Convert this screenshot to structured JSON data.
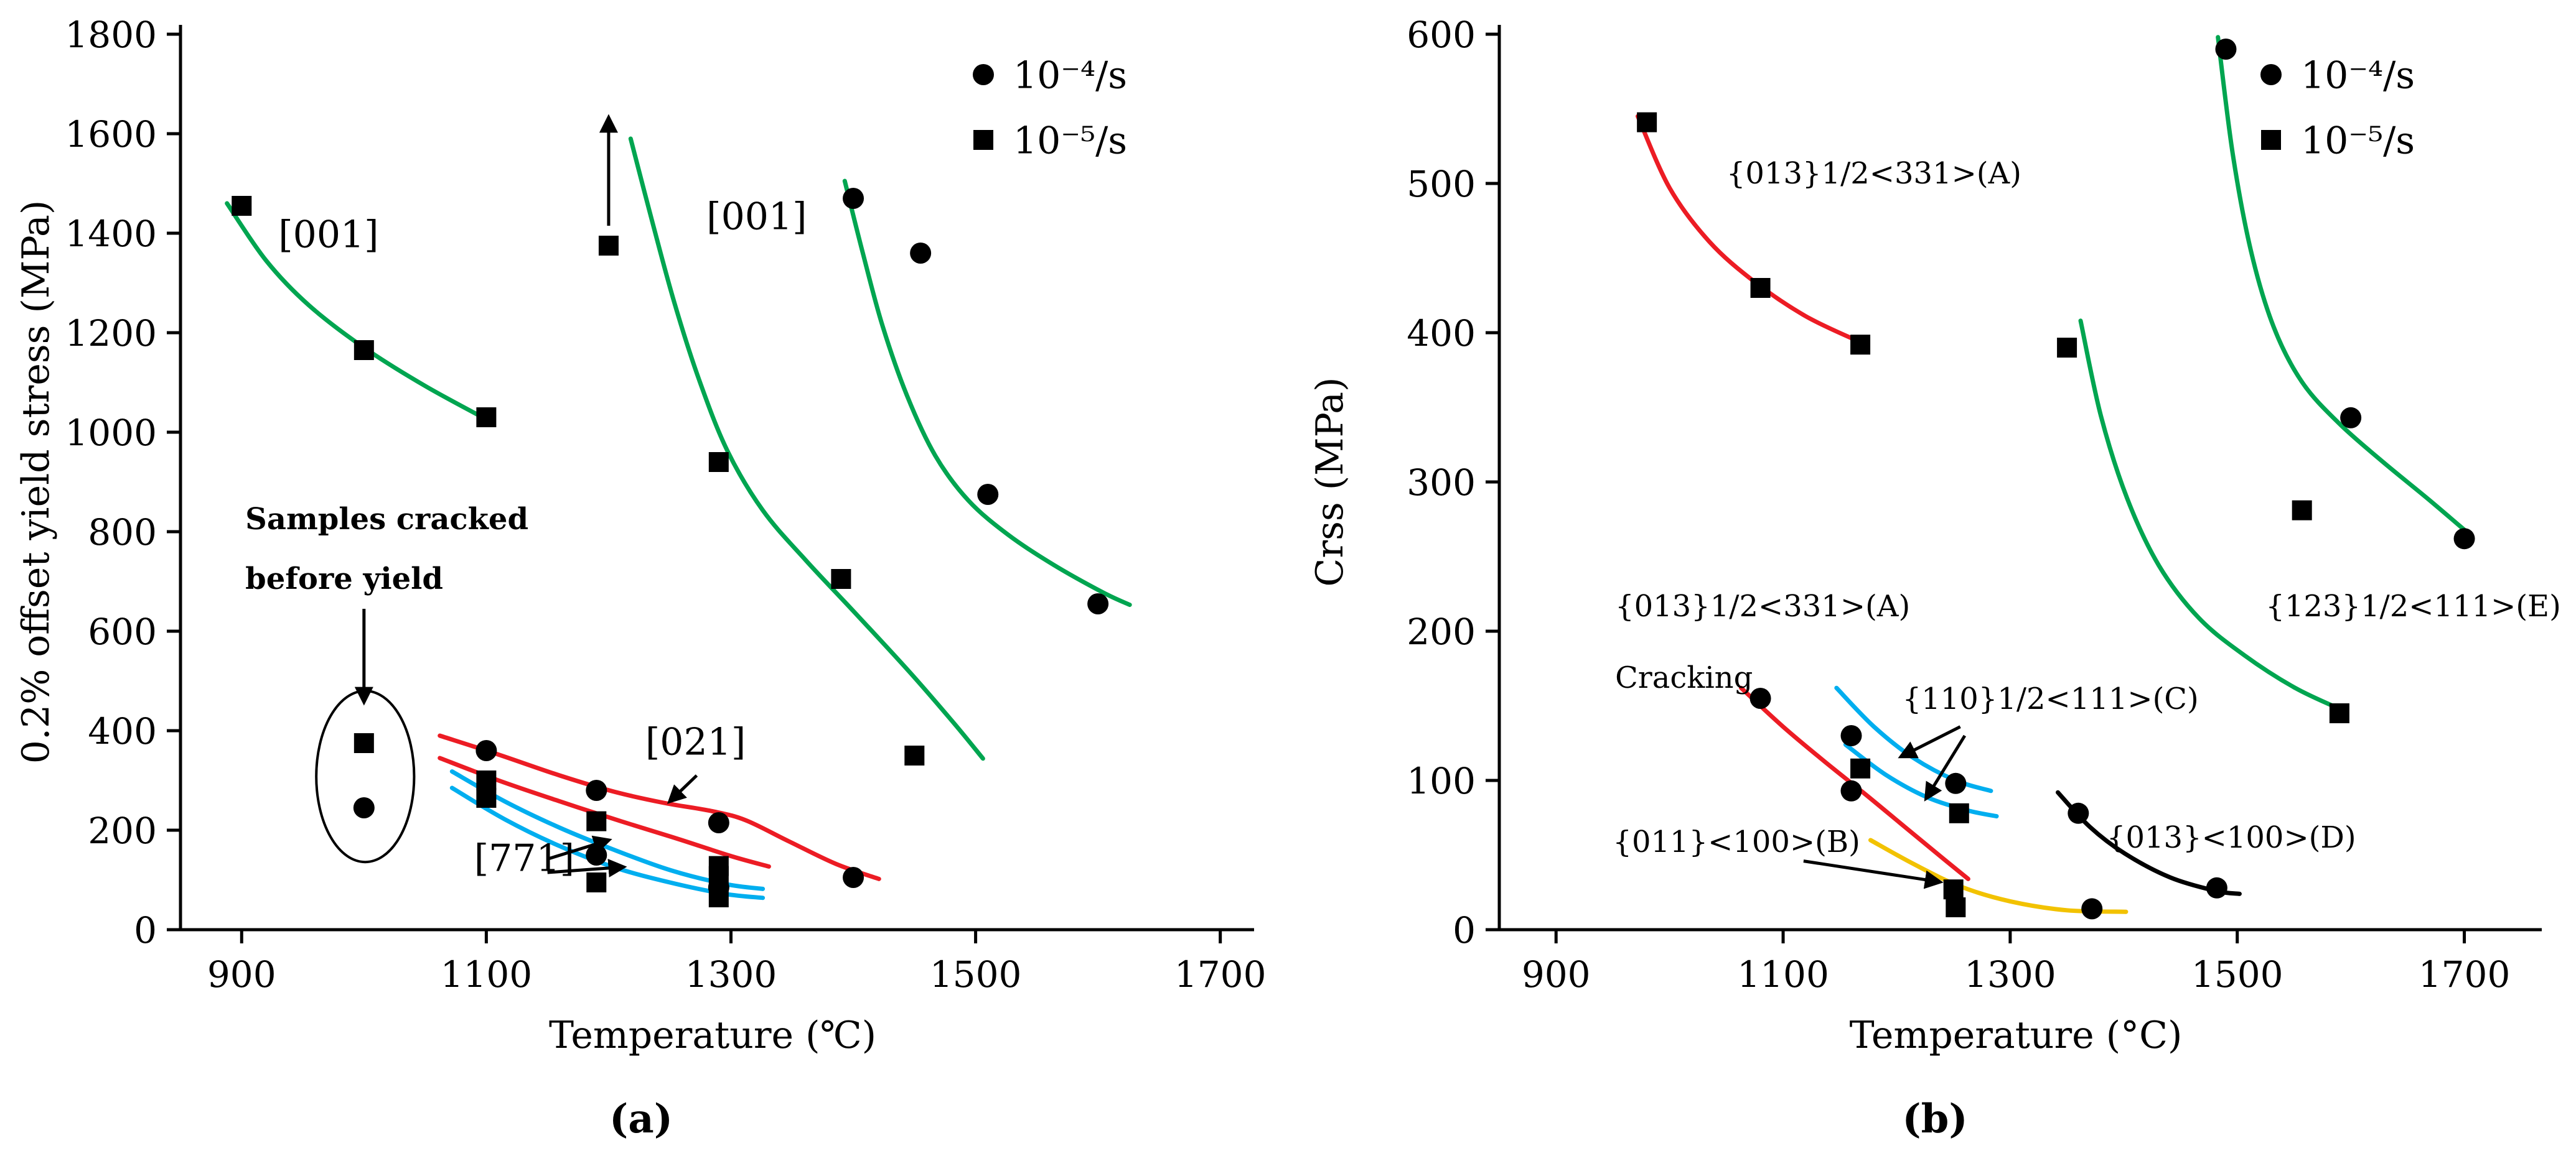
{
  "page": {
    "background": "#ffffff"
  },
  "chart_data": [
    {
      "id": "a",
      "type": "line",
      "caption": "(a)",
      "title": "",
      "xlabel": "Temperature (℃)",
      "ylabel": "0.2% offset yield stress (MPa)",
      "xlim": [
        850,
        1720
      ],
      "ylim": [
        0,
        1800
      ],
      "xticks": [
        900,
        1100,
        1300,
        1500,
        1700
      ],
      "yticks": [
        0,
        200,
        400,
        600,
        800,
        1000,
        1200,
        1400,
        1600,
        1800
      ],
      "grid": false,
      "legend": {
        "position": "top-right",
        "items": [
          {
            "marker": "circle",
            "label": "10⁻⁴/s"
          },
          {
            "marker": "square",
            "label": "10⁻⁵/s"
          }
        ]
      },
      "series": [
        {
          "key": "green-001-sq-low",
          "label": "[001] 10⁻⁵/s",
          "color": "#00A550",
          "marker": "square",
          "curve": [
            [
              888,
              1460
            ],
            [
              920,
              1345
            ],
            [
              955,
              1255
            ],
            [
              1000,
              1170
            ],
            [
              1050,
              1093
            ],
            [
              1103,
              1022
            ]
          ],
          "points": [
            [
              900,
              1455
            ],
            [
              1000,
              1165
            ],
            [
              1100,
              1030
            ]
          ]
        },
        {
          "key": "green-001-sq-high",
          "label": "[001] 10⁻⁵/s",
          "color": "#00A550",
          "marker": "square",
          "curve": [
            [
              1218,
              1590
            ],
            [
              1236,
              1420
            ],
            [
              1254,
              1258
            ],
            [
              1274,
              1105
            ],
            [
              1297,
              963
            ],
            [
              1326,
              843
            ],
            [
              1361,
              743
            ],
            [
              1401,
              638
            ],
            [
              1446,
              518
            ],
            [
              1483,
              413
            ],
            [
              1506,
              344
            ]
          ],
          "points": [
            [
              1200,
              1375
            ],
            [
              1290,
              940
            ],
            [
              1390,
              705
            ],
            [
              1450,
              350
            ]
          ]
        },
        {
          "key": "green-001-ci",
          "label": "[001] 10⁻⁴/s",
          "color": "#00A550",
          "marker": "circle",
          "curve": [
            [
              1393,
              1505
            ],
            [
              1408,
              1358
            ],
            [
              1424,
              1213
            ],
            [
              1444,
              1073
            ],
            [
              1467,
              953
            ],
            [
              1494,
              863
            ],
            [
              1527,
              793
            ],
            [
              1564,
              733
            ],
            [
              1604,
              678
            ],
            [
              1626,
              653
            ]
          ],
          "points": [
            [
              1400,
              1470
            ],
            [
              1455,
              1360
            ],
            [
              1510,
              875
            ],
            [
              1600,
              655
            ]
          ]
        },
        {
          "key": "red-021-ci",
          "label": "[021] 10⁻⁴/s",
          "color": "#EC1C24",
          "marker": "circle",
          "curve": [
            [
              1062,
              390
            ],
            [
              1110,
              352
            ],
            [
              1160,
              310
            ],
            [
              1205,
              277
            ],
            [
              1245,
              255
            ],
            [
              1285,
              238
            ],
            [
              1312,
              220
            ],
            [
              1347,
              178
            ],
            [
              1386,
              132
            ],
            [
              1421,
              102
            ]
          ],
          "points": [
            [
              1100,
              360
            ],
            [
              1190,
              280
            ],
            [
              1290,
              215
            ],
            [
              1400,
              105
            ]
          ]
        },
        {
          "key": "red-021-sq",
          "label": "[021] 10⁻⁵/s",
          "color": "#EC1C24",
          "marker": "square",
          "curve": [
            [
              1062,
              345
            ],
            [
              1110,
              300
            ],
            [
              1160,
              258
            ],
            [
              1210,
              218
            ],
            [
              1256,
              183
            ],
            [
              1300,
              148
            ],
            [
              1331,
              127
            ]
          ],
          "points": [
            [
              1100,
              300
            ],
            [
              1190,
              218
            ],
            [
              1290,
              128
            ]
          ]
        },
        {
          "key": "cyan-771-ci",
          "label": "[771] 10⁻⁴/s",
          "color": "#00AEEF",
          "marker": "circle",
          "curve": [
            [
              1072,
              318
            ],
            [
              1115,
              258
            ],
            [
              1160,
              205
            ],
            [
              1205,
              160
            ],
            [
              1250,
              120
            ],
            [
              1295,
              92
            ],
            [
              1326,
              82
            ]
          ],
          "points": [
            [
              1190,
              150
            ],
            [
              1290,
              85
            ]
          ]
        },
        {
          "key": "cyan-771-sq",
          "label": "[771] 10⁻⁵/s",
          "color": "#00AEEF",
          "marker": "square",
          "curve": [
            [
              1072,
              285
            ],
            [
              1115,
              222
            ],
            [
              1160,
              168
            ],
            [
              1205,
              125
            ],
            [
              1250,
              95
            ],
            [
              1295,
              72
            ],
            [
              1326,
              64
            ]
          ],
          "points": [
            [
              1100,
              265
            ],
            [
              1190,
              95
            ],
            [
              1290,
              65
            ]
          ]
        }
      ],
      "extra_markers": [
        {
          "marker": "square",
          "x": 1290,
          "y": 108
        },
        {
          "marker": "square",
          "x": 1000,
          "y": 375
        },
        {
          "marker": "circle",
          "x": 1000,
          "y": 245
        }
      ],
      "annotations": [
        {
          "type": "text",
          "x": 930,
          "y": 1372,
          "text": "[001]",
          "size": 60
        },
        {
          "type": "text",
          "x": 1280,
          "y": 1408,
          "text": "[001]",
          "size": 60
        },
        {
          "type": "text",
          "x": 1230,
          "y": 352,
          "text": "[021]",
          "size": 60
        },
        {
          "type": "arrow",
          "from": [
            1272,
            310
          ],
          "to": [
            1250,
            258
          ]
        },
        {
          "type": "text",
          "x": 1090,
          "y": 118,
          "text": "[771]",
          "size": 60
        },
        {
          "type": "arrow",
          "from": [
            1150,
            142
          ],
          "to": [
            1200,
            180
          ]
        },
        {
          "type": "arrow",
          "from": [
            1150,
            115
          ],
          "to": [
            1212,
            126
          ]
        },
        {
          "type": "text",
          "x": 903,
          "y": 805,
          "text": "Samples cracked",
          "size": 48,
          "weight": "bold"
        },
        {
          "type": "text",
          "x": 903,
          "y": 685,
          "text": "before yield",
          "size": 48,
          "weight": "bold"
        },
        {
          "type": "arrow",
          "from": [
            1000,
            645
          ],
          "to": [
            1000,
            458
          ]
        },
        {
          "type": "ellipse",
          "cx": 1001,
          "cy": 308,
          "rx": 40,
          "ry": 172
        },
        {
          "type": "arrow",
          "from": [
            1200,
            1415
          ],
          "to": [
            1200,
            1632
          ]
        }
      ]
    },
    {
      "id": "b",
      "type": "line",
      "caption": "(b)",
      "title": "",
      "xlabel": "Temperature (°C)",
      "ylabel": "Crss (MPa)",
      "xlim": [
        850,
        1760
      ],
      "ylim": [
        0,
        600
      ],
      "xticks": [
        900,
        1100,
        1300,
        1500,
        1700
      ],
      "yticks": [
        0,
        100,
        200,
        300,
        400,
        500,
        600
      ],
      "grid": false,
      "legend": {
        "position": "top-right",
        "items": [
          {
            "marker": "circle",
            "label": "10⁻⁴/s"
          },
          {
            "marker": "square",
            "label": "10⁻⁵/s"
          }
        ]
      },
      "series": [
        {
          "key": "red-A-sq",
          "label": "{013}1/2<331>(A) 10⁻⁵/s",
          "color": "#EC1C24",
          "marker": "square",
          "curve": [
            [
              972,
              545
            ],
            [
              1000,
              497
            ],
            [
              1035,
              461
            ],
            [
              1075,
              434
            ],
            [
              1120,
              411
            ],
            [
              1167,
              394
            ]
          ],
          "points": [
            [
              980,
              541
            ],
            [
              1080,
              430
            ],
            [
              1168,
              392
            ]
          ]
        },
        {
          "key": "red-A-ci-cracking",
          "label": "{013}1/2<331>(A) 10⁻⁴/s cracking",
          "color": "#EC1C24",
          "marker": "circle",
          "curve": [
            [
              1063,
              162
            ],
            [
              1100,
              136
            ],
            [
              1136,
              113
            ],
            [
              1172,
              91
            ],
            [
              1207,
              69
            ],
            [
              1242,
              47
            ],
            [
              1263,
              34
            ]
          ],
          "points": [
            [
              1080,
              155
            ],
            [
              1160,
              93
            ]
          ]
        },
        {
          "key": "cyan-C-ci",
          "label": "{110}1/2<111>(C) 10⁻⁴/s",
          "color": "#00AEEF",
          "marker": "circle",
          "curve": [
            [
              1147,
              162
            ],
            [
              1180,
              136
            ],
            [
              1215,
              115
            ],
            [
              1252,
              100
            ],
            [
              1283,
              93
            ]
          ],
          "points": [
            [
              1160,
              130
            ],
            [
              1252,
              98
            ]
          ]
        },
        {
          "key": "cyan-C-sq",
          "label": "{110}1/2<111>(C) 10⁻⁵/s",
          "color": "#00AEEF",
          "marker": "square",
          "curve": [
            [
              1155,
              124
            ],
            [
              1190,
              104
            ],
            [
              1226,
              89
            ],
            [
              1262,
              80
            ],
            [
              1288,
              76
            ]
          ],
          "points": [
            [
              1168,
              108
            ],
            [
              1255,
              78
            ]
          ]
        },
        {
          "key": "yellow-B",
          "label": "{011}<100>(B)",
          "color": "#F2C200",
          "marker": "square",
          "curve": [
            [
              1177,
              60
            ],
            [
              1215,
              44
            ],
            [
              1256,
              29
            ],
            [
              1300,
              19
            ],
            [
              1350,
              13
            ],
            [
              1402,
              12
            ]
          ],
          "points": [
            [
              1250,
              27
            ]
          ]
        },
        {
          "key": "black-D-ci",
          "label": "{013}<100>(D) 10⁻⁴/s",
          "color": "#000000",
          "marker": "circle",
          "curve": [
            [
              1342,
              92
            ],
            [
              1370,
              69
            ],
            [
              1401,
              51
            ],
            [
              1441,
              35
            ],
            [
              1481,
              26
            ],
            [
              1502,
              24
            ]
          ],
          "points": [
            [
              1360,
              78
            ],
            [
              1482,
              28
            ]
          ]
        },
        {
          "key": "green-E-ci",
          "label": "{123}1/2<111>(E) 10⁻⁴/s",
          "color": "#00A550",
          "marker": "circle",
          "curve": [
            [
              1483,
              598
            ],
            [
              1496,
              520
            ],
            [
              1512,
              455
            ],
            [
              1532,
              404
            ],
            [
              1557,
              367
            ],
            [
              1590,
              339
            ],
            [
              1629,
              313
            ],
            [
              1669,
              288
            ],
            [
              1706,
              264
            ]
          ],
          "points": [
            [
              1490,
              590
            ],
            [
              1600,
              343
            ],
            [
              1700,
              262
            ]
          ]
        },
        {
          "key": "green-E-sq",
          "label": "{123}1/2<111>(E) 10⁻⁵/s",
          "color": "#00A550",
          "marker": "square",
          "curve": [
            [
              1362,
              408
            ],
            [
              1380,
              344
            ],
            [
              1403,
              289
            ],
            [
              1431,
              244
            ],
            [
              1466,
              209
            ],
            [
              1506,
              184
            ],
            [
              1551,
              162
            ],
            [
              1593,
              147
            ]
          ],
          "points": [
            [
              1350,
              390
            ],
            [
              1590,
              145
            ]
          ]
        }
      ],
      "extra_markers": [
        {
          "marker": "square",
          "x": 1557,
          "y": 281
        },
        {
          "marker": "square",
          "x": 1252,
          "y": 15
        },
        {
          "marker": "circle",
          "x": 1372,
          "y": 14
        }
      ],
      "annotations": [
        {
          "type": "text",
          "x": 1050,
          "y": 500,
          "text": "{013}1/2<331>(A)",
          "size": 48
        },
        {
          "type": "text",
          "x": 952,
          "y": 210,
          "text": "{013}1/2<331>(A)",
          "size": 48
        },
        {
          "type": "text",
          "x": 952,
          "y": 162,
          "text": "Cracking",
          "size": 48
        },
        {
          "type": "text",
          "x": 1205,
          "y": 148,
          "text": "{110}1/2<111>(C)",
          "size": 48
        },
        {
          "type": "arrow",
          "from": [
            1256,
            136
          ],
          "to": [
            1204,
            116
          ]
        },
        {
          "type": "arrow",
          "from": [
            1260,
            130
          ],
          "to": [
            1226,
            88
          ]
        },
        {
          "type": "text",
          "x": 950,
          "y": 52,
          "text": "{011}<100>(B)",
          "size": 48
        },
        {
          "type": "arrow",
          "from": [
            1118,
            46
          ],
          "to": [
            1238,
            32
          ]
        },
        {
          "type": "text",
          "x": 1385,
          "y": 55,
          "text": "{013}<100>(D)",
          "size": 48
        },
        {
          "type": "text",
          "x": 1525,
          "y": 210,
          "text": "{123}1/2<111>(E)",
          "size": 48
        }
      ]
    }
  ]
}
